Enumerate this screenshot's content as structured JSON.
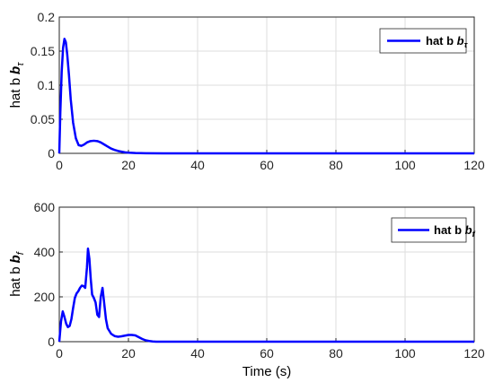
{
  "chart_data": [
    {
      "type": "line",
      "ylabel": "hat b",
      "ylabel_sub": "τ",
      "xlabel": "",
      "xlim": [
        0,
        120
      ],
      "ylim": [
        0,
        0.2
      ],
      "xticks": [
        "0",
        "20",
        "40",
        "60",
        "80",
        "100",
        "120"
      ],
      "yticks": [
        "0",
        "0.05",
        "0.1",
        "0.15",
        "0.2"
      ],
      "grid": true,
      "legend_position": "top-right",
      "series": [
        {
          "name": "hat b",
          "name_sub": "τ",
          "color": "#0000ff",
          "x": [
            0,
            0.3,
            0.7,
            1.1,
            1.5,
            1.9,
            2.3,
            2.8,
            3.3,
            4,
            4.8,
            5.6,
            6.4,
            7.2,
            8,
            9,
            10,
            11,
            12,
            13,
            14,
            15,
            16,
            17,
            18,
            19,
            20,
            22,
            25,
            30,
            40,
            60,
            80,
            100,
            120
          ],
          "y": [
            0,
            0.06,
            0.12,
            0.155,
            0.168,
            0.163,
            0.145,
            0.115,
            0.08,
            0.045,
            0.022,
            0.012,
            0.011,
            0.013,
            0.016,
            0.018,
            0.0185,
            0.018,
            0.016,
            0.013,
            0.01,
            0.007,
            0.005,
            0.0035,
            0.0025,
            0.0015,
            0.001,
            0.0005,
            0.0002,
            0,
            0,
            0,
            0,
            0,
            0
          ]
        }
      ]
    },
    {
      "type": "line",
      "ylabel": "hat b",
      "ylabel_sub": "f",
      "xlabel": "Time (s)",
      "xlim": [
        0,
        120
      ],
      "ylim": [
        0,
        600
      ],
      "xticks": [
        "0",
        "20",
        "40",
        "60",
        "80",
        "100",
        "120"
      ],
      "yticks": [
        "0",
        "200",
        "400",
        "600"
      ],
      "grid": true,
      "legend_position": "top-right",
      "series": [
        {
          "name": "hat b",
          "name_sub": "f",
          "color": "#0000ff",
          "x": [
            0,
            0.5,
            1,
            1.5,
            2,
            2.5,
            3,
            3.5,
            4,
            4.5,
            5,
            5.5,
            6,
            6.5,
            7,
            7.5,
            8,
            8.3,
            8.7,
            9.1,
            9.5,
            10,
            10.5,
            11,
            11.5,
            12,
            12.5,
            13,
            13.5,
            14,
            15,
            16,
            17,
            18,
            19,
            20,
            21,
            22,
            23,
            24,
            25,
            26,
            27,
            28,
            30,
            35,
            40,
            60,
            80,
            100,
            120
          ],
          "y": [
            0,
            90,
            135,
            110,
            80,
            65,
            70,
            100,
            150,
            195,
            215,
            225,
            240,
            250,
            248,
            240,
            330,
            415,
            370,
            280,
            210,
            195,
            175,
            120,
            110,
            200,
            240,
            170,
            100,
            60,
            35,
            25,
            22,
            24,
            27,
            30,
            30,
            28,
            20,
            12,
            6,
            3,
            1,
            0,
            0,
            0,
            0,
            0,
            0,
            0,
            0
          ]
        }
      ]
    }
  ]
}
